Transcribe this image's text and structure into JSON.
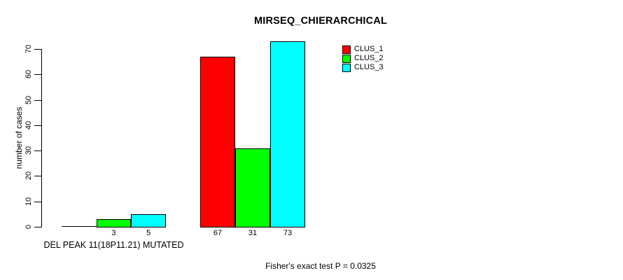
{
  "chart_data": {
    "type": "bar",
    "title": "MIRSEQ_CHIERARCHICAL",
    "ylabel": "number of cases",
    "xlabel": "",
    "footnote": "Fisher's exact test P = 0.0325",
    "ylim": [
      0,
      70
    ],
    "yticks": [
      0,
      10,
      20,
      30,
      40,
      50,
      60,
      70
    ],
    "grid": false,
    "background": "#ffffff",
    "bar_border_color": "#000000",
    "legend_position": "top-right",
    "series": [
      {
        "name": "CLUS_1",
        "color": "#ff0000"
      },
      {
        "name": "CLUS_2",
        "color": "#00ff00"
      },
      {
        "name": "CLUS_3",
        "color": "#00ffff"
      }
    ],
    "groups": [
      {
        "label": "DEL PEAK 11(18P11.21) MUTATED",
        "values": [
          0,
          3,
          5
        ],
        "value_labels": [
          "",
          "3",
          "5"
        ]
      },
      {
        "label": "",
        "values": [
          67,
          31,
          73
        ],
        "value_labels": [
          "67",
          "31",
          "73"
        ]
      }
    ]
  }
}
